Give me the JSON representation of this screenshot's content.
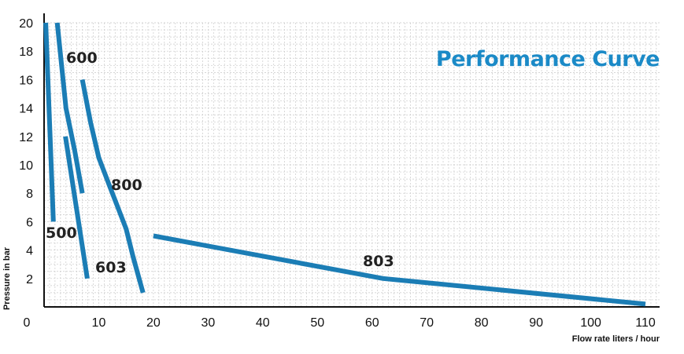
{
  "chart_data": {
    "type": "line",
    "title": "Performance Curve",
    "xlabel": "Flow rate liters / hour",
    "ylabel": "Pressure in bar",
    "xlim": [
      0,
      110
    ],
    "ylim": [
      0,
      20
    ],
    "x_ticks": [
      0,
      10,
      20,
      30,
      40,
      50,
      60,
      70,
      80,
      90,
      100,
      110
    ],
    "y_ticks": [
      2,
      4,
      6,
      8,
      10,
      12,
      14,
      16,
      18,
      20
    ],
    "grid": true,
    "line_color": "#1b7db5",
    "title_color": "#1b8ac7",
    "series": [
      {
        "name": "500",
        "points": [
          [
            0.3,
            20
          ],
          [
            1.7,
            6
          ]
        ]
      },
      {
        "name": "600",
        "points": [
          [
            2.4,
            20
          ],
          [
            4.0,
            14
          ],
          [
            5.6,
            11
          ],
          [
            7.0,
            8
          ]
        ]
      },
      {
        "name": "603",
        "points": [
          [
            3.9,
            12
          ],
          [
            5.5,
            8
          ],
          [
            7.9,
            2
          ]
        ]
      },
      {
        "name": "800",
        "points": [
          [
            7.0,
            16
          ],
          [
            8.5,
            13
          ],
          [
            10.0,
            10.5
          ],
          [
            12.0,
            8.5
          ],
          [
            15.0,
            5.5
          ],
          [
            16.3,
            3.5
          ],
          [
            18.1,
            1
          ]
        ]
      },
      {
        "name": "803",
        "points": [
          [
            20,
            5
          ],
          [
            62,
            2
          ],
          [
            110,
            0.2
          ]
        ]
      }
    ]
  }
}
